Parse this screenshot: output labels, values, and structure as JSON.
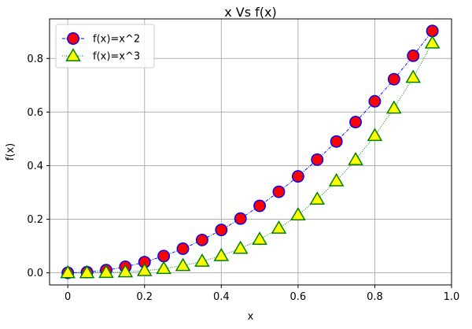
{
  "chart_data": {
    "type": "line",
    "title": "x Vs f(x)",
    "xlabel": "x",
    "ylabel": "f(x)",
    "xlim": [
      -0.0475,
      1.0
    ],
    "ylim": [
      -0.045125,
      0.947625
    ],
    "xticks": [
      0,
      0.2,
      0.4,
      0.6,
      0.8,
      1.0
    ],
    "xtick_labels": [
      "0",
      "0.2",
      "0.4",
      "0.6",
      "0.8",
      "1.0"
    ],
    "yticks": [
      0.0,
      0.2,
      0.4,
      0.6,
      0.8
    ],
    "ytick_labels": [
      "0.0",
      "0.2",
      "0.4",
      "0.6",
      "0.8"
    ],
    "grid": true,
    "legend_position": "top-left",
    "x": [
      0,
      0.05,
      0.1,
      0.15,
      0.2,
      0.25,
      0.3,
      0.35,
      0.4,
      0.45,
      0.5,
      0.55,
      0.6,
      0.65,
      0.7,
      0.75,
      0.8,
      0.85,
      0.9,
      0.95
    ],
    "series": [
      {
        "name": "f(x)=x^2",
        "marker": "circle",
        "line_style": "dash-dot",
        "line_color": "#0000ff",
        "marker_face": "#ff0000",
        "marker_edge": "#0000ff",
        "values": [
          0,
          0.0025,
          0.01,
          0.0225,
          0.04,
          0.0625,
          0.09,
          0.1225,
          0.16,
          0.2025,
          0.25,
          0.3025,
          0.36,
          0.4225,
          0.49,
          0.5625,
          0.64,
          0.7225,
          0.81,
          0.9025
        ]
      },
      {
        "name": "f(x)=x^3",
        "marker": "triangle",
        "line_style": "dotted",
        "line_color": "#008000",
        "marker_face": "#ffff00",
        "marker_edge": "#008000",
        "values": [
          0,
          0.000125,
          0.001,
          0.003375,
          0.008,
          0.015625,
          0.027,
          0.042875,
          0.064,
          0.091125,
          0.125,
          0.166375,
          0.216,
          0.274625,
          0.343,
          0.421875,
          0.512,
          0.614125,
          0.729,
          0.857375
        ]
      }
    ]
  }
}
